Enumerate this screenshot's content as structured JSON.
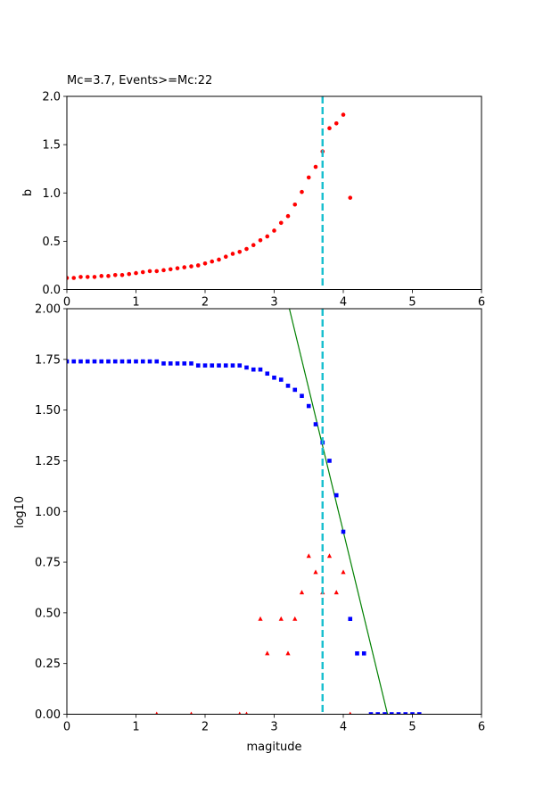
{
  "chart_data": [
    {
      "type": "scatter",
      "title": "Mc=3.7, Events>=Mc:22",
      "xlabel": "",
      "ylabel": "b",
      "xlim": [
        0,
        6
      ],
      "ylim": [
        0,
        2
      ],
      "xticks": [
        "0",
        "1",
        "2",
        "3",
        "4",
        "5",
        "6"
      ],
      "yticks": [
        "0.0",
        "0.5",
        "1.0",
        "1.5",
        "2.0"
      ],
      "vline": {
        "x": 3.7,
        "color": "#17becf",
        "style": "dashed"
      },
      "series": [
        {
          "marker": "circle",
          "color": "#ff0000",
          "points": [
            [
              0.0,
              0.12
            ],
            [
              0.1,
              0.12
            ],
            [
              0.2,
              0.13
            ],
            [
              0.3,
              0.13
            ],
            [
              0.4,
              0.13
            ],
            [
              0.5,
              0.14
            ],
            [
              0.6,
              0.14
            ],
            [
              0.7,
              0.15
            ],
            [
              0.8,
              0.15
            ],
            [
              0.9,
              0.16
            ],
            [
              1.0,
              0.17
            ],
            [
              1.1,
              0.18
            ],
            [
              1.2,
              0.19
            ],
            [
              1.3,
              0.19
            ],
            [
              1.4,
              0.2
            ],
            [
              1.5,
              0.21
            ],
            [
              1.6,
              0.22
            ],
            [
              1.7,
              0.23
            ],
            [
              1.8,
              0.24
            ],
            [
              1.9,
              0.25
            ],
            [
              2.0,
              0.27
            ],
            [
              2.1,
              0.29
            ],
            [
              2.2,
              0.31
            ],
            [
              2.3,
              0.34
            ],
            [
              2.4,
              0.37
            ],
            [
              2.5,
              0.39
            ],
            [
              2.6,
              0.42
            ],
            [
              2.7,
              0.46
            ],
            [
              2.8,
              0.51
            ],
            [
              2.9,
              0.55
            ],
            [
              3.0,
              0.61
            ],
            [
              3.1,
              0.69
            ],
            [
              3.2,
              0.76
            ],
            [
              3.3,
              0.88
            ],
            [
              3.4,
              1.01
            ],
            [
              3.5,
              1.16
            ],
            [
              3.6,
              1.27
            ],
            [
              3.7,
              1.43
            ],
            [
              3.8,
              1.67
            ],
            [
              3.9,
              1.72
            ],
            [
              4.0,
              1.81
            ],
            [
              4.1,
              0.95
            ]
          ]
        }
      ]
    },
    {
      "type": "scatter",
      "title": "",
      "xlabel": "magitude",
      "ylabel": "log10",
      "xlim": [
        0,
        6
      ],
      "ylim": [
        0,
        2
      ],
      "xticks": [
        "0",
        "1",
        "2",
        "3",
        "4",
        "5",
        "6"
      ],
      "yticks": [
        "0.00",
        "0.25",
        "0.50",
        "0.75",
        "1.00",
        "1.25",
        "1.50",
        "1.75",
        "2.00"
      ],
      "vline": {
        "x": 3.7,
        "color": "#17becf",
        "style": "dashed"
      },
      "fit_line": {
        "color": "#008000",
        "points": [
          [
            3.22,
            2.0
          ],
          [
            4.64,
            0.0
          ]
        ]
      },
      "series": [
        {
          "marker": "square",
          "color": "#0000ff",
          "points": [
            [
              0.0,
              1.74
            ],
            [
              0.1,
              1.74
            ],
            [
              0.2,
              1.74
            ],
            [
              0.3,
              1.74
            ],
            [
              0.4,
              1.74
            ],
            [
              0.5,
              1.74
            ],
            [
              0.6,
              1.74
            ],
            [
              0.7,
              1.74
            ],
            [
              0.8,
              1.74
            ],
            [
              0.9,
              1.74
            ],
            [
              1.0,
              1.74
            ],
            [
              1.1,
              1.74
            ],
            [
              1.2,
              1.74
            ],
            [
              1.3,
              1.74
            ],
            [
              1.4,
              1.73
            ],
            [
              1.5,
              1.73
            ],
            [
              1.6,
              1.73
            ],
            [
              1.7,
              1.73
            ],
            [
              1.8,
              1.73
            ],
            [
              1.9,
              1.72
            ],
            [
              2.0,
              1.72
            ],
            [
              2.1,
              1.72
            ],
            [
              2.2,
              1.72
            ],
            [
              2.3,
              1.72
            ],
            [
              2.4,
              1.72
            ],
            [
              2.5,
              1.72
            ],
            [
              2.6,
              1.71
            ],
            [
              2.7,
              1.7
            ],
            [
              2.8,
              1.7
            ],
            [
              2.9,
              1.68
            ],
            [
              3.0,
              1.66
            ],
            [
              3.1,
              1.65
            ],
            [
              3.2,
              1.62
            ],
            [
              3.3,
              1.6
            ],
            [
              3.4,
              1.57
            ],
            [
              3.5,
              1.52
            ],
            [
              3.6,
              1.43
            ],
            [
              3.7,
              1.34
            ],
            [
              3.8,
              1.25
            ],
            [
              3.9,
              1.08
            ],
            [
              4.0,
              0.9
            ],
            [
              4.1,
              0.47
            ],
            [
              4.2,
              0.3
            ],
            [
              4.3,
              0.3
            ],
            [
              4.4,
              0.0
            ],
            [
              4.5,
              0.0
            ],
            [
              4.6,
              0.0
            ],
            [
              4.7,
              0.0
            ],
            [
              4.8,
              0.0
            ],
            [
              4.9,
              0.0
            ],
            [
              5.0,
              0.0
            ],
            [
              5.1,
              0.0
            ]
          ]
        },
        {
          "marker": "triangle",
          "color": "#ff0000",
          "points": [
            [
              1.3,
              0.0
            ],
            [
              1.8,
              0.0
            ],
            [
              2.5,
              0.0
            ],
            [
              2.6,
              0.0
            ],
            [
              2.8,
              0.47
            ],
            [
              2.9,
              0.3
            ],
            [
              3.1,
              0.47
            ],
            [
              3.2,
              0.3
            ],
            [
              3.3,
              0.47
            ],
            [
              3.4,
              0.6
            ],
            [
              3.5,
              0.78
            ],
            [
              3.6,
              0.7
            ],
            [
              3.7,
              0.6
            ],
            [
              3.8,
              0.78
            ],
            [
              3.9,
              0.6
            ],
            [
              4.0,
              0.7
            ],
            [
              4.1,
              0.0
            ]
          ]
        }
      ]
    }
  ]
}
